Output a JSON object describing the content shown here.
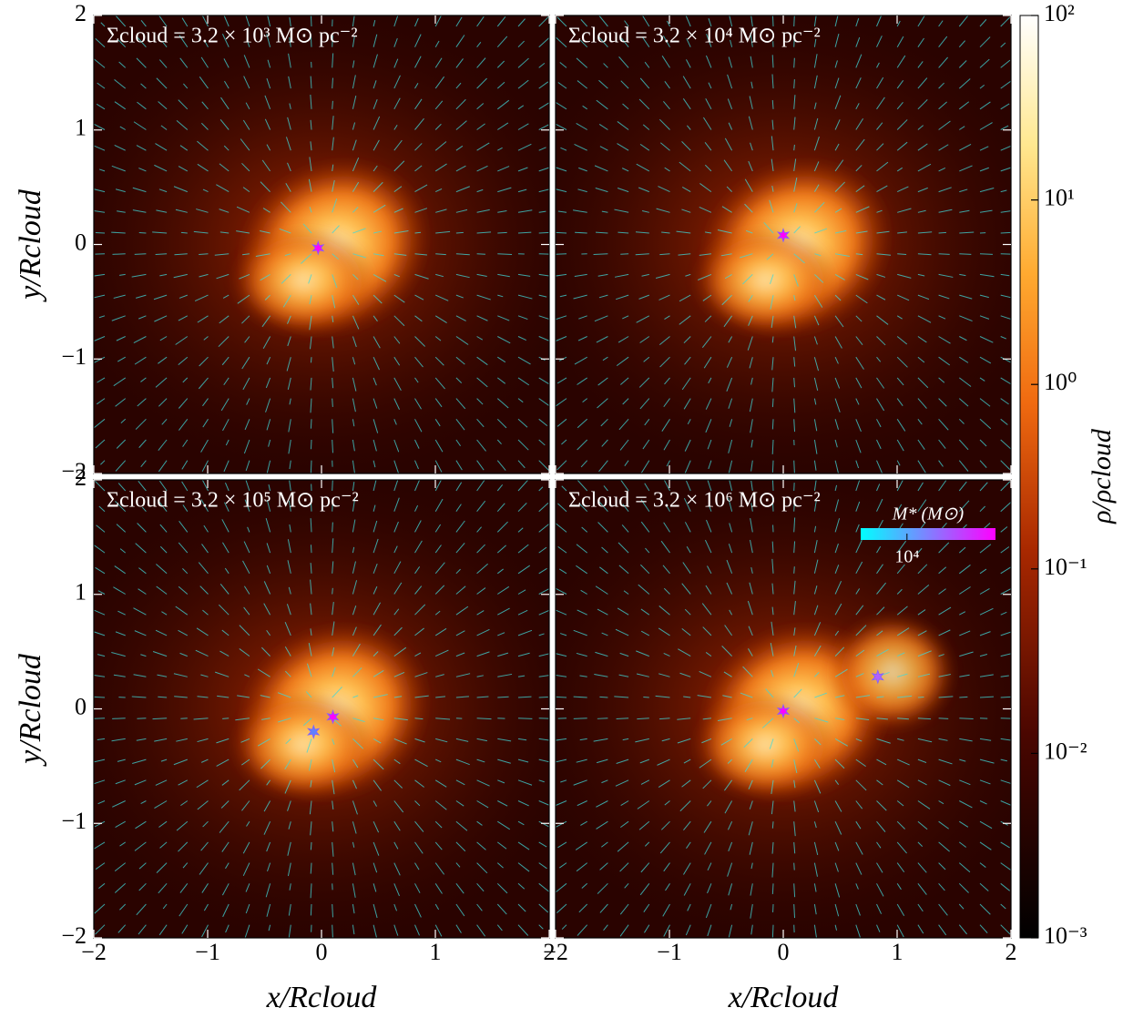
{
  "chart_data": [
    {
      "type": "scatter",
      "title": "Σcloud = 3.2 × 10³ M⊙ pc⁻²",
      "ylabel": "y/Rcloud",
      "xlim": [
        -2,
        2
      ],
      "ylim": [
        -2,
        2
      ],
      "xticks": [
        {
          "value": -2,
          "label": "−2"
        },
        {
          "value": -1,
          "label": "−1"
        },
        0,
        1,
        2
      ],
      "yticks": [
        {
          "value": -2,
          "label": "−2"
        },
        {
          "value": -1,
          "label": "−1"
        },
        0,
        1,
        2
      ],
      "show_xticklabels": false,
      "show_yticklabels": true,
      "x": [
        -0.03
      ],
      "values": [
        -0.03
      ],
      "colors": [
        "#ff00ff"
      ]
    },
    {
      "type": "scatter",
      "title": "Σcloud = 3.2 × 10⁴ M⊙ pc⁻²",
      "xlim": [
        -2,
        2
      ],
      "ylim": [
        -2,
        2
      ],
      "xticks": [
        {
          "value": -2,
          "label": "−2"
        },
        {
          "value": -1,
          "label": "−1"
        },
        0,
        1,
        2
      ],
      "yticks": [
        {
          "value": -2,
          "label": "−2"
        },
        {
          "value": -1,
          "label": "−1"
        },
        0,
        1,
        2
      ],
      "show_xticklabels": false,
      "show_yticklabels": false,
      "x": [
        0.0
      ],
      "values": [
        0.08
      ],
      "colors": [
        "#ff00ff"
      ]
    },
    {
      "type": "scatter",
      "title": "Σcloud = 3.2 × 10⁵ M⊙ pc⁻²",
      "xlabel": "x/Rcloud",
      "ylabel": "y/Rcloud",
      "xlim": [
        -2,
        2
      ],
      "ylim": [
        -2,
        2
      ],
      "xticks": [
        {
          "value": -2,
          "label": "−2"
        },
        {
          "value": -1,
          "label": "−1"
        },
        0,
        1,
        2
      ],
      "yticks": [
        {
          "value": -2,
          "label": "−2"
        },
        {
          "value": -1,
          "label": "−1"
        },
        0,
        1,
        2
      ],
      "show_xticklabels": true,
      "show_yticklabels": true,
      "x": [
        0.1,
        -0.07
      ],
      "values": [
        -0.07,
        -0.2
      ],
      "colors": [
        "#ff00ff",
        "#6080ff"
      ]
    },
    {
      "type": "scatter",
      "title": "Σcloud = 3.2 × 10⁶ M⊙ pc⁻²",
      "xlabel": "x/Rcloud",
      "xlim": [
        -2,
        2
      ],
      "ylim": [
        -2,
        2
      ],
      "xticks": [
        {
          "value": -2,
          "label": "−2"
        },
        {
          "value": -1,
          "label": "−1"
        },
        0,
        1,
        2
      ],
      "yticks": [
        {
          "value": -2,
          "label": "−2"
        },
        {
          "value": -1,
          "label": "−1"
        },
        0,
        1,
        2
      ],
      "show_xticklabels": true,
      "show_yticklabels": false,
      "x": [
        0.0,
        0.83
      ],
      "values": [
        -0.02,
        0.28
      ],
      "colors": [
        "#ff00ff",
        "#b060ff"
      ],
      "mass_colorbar": {
        "label": "M* (M⊙)",
        "lim": [
          3000,
          100000
        ],
        "log": true,
        "ticks": [
          {
            "value": 10000,
            "label": "10⁴"
          }
        ]
      }
    }
  ],
  "colorbar": {
    "label": "ρ/ρcloud",
    "lim": [
      0.001,
      100
    ],
    "log": true,
    "ticks": [
      {
        "value": 0.001,
        "label": "10⁻³"
      },
      {
        "value": 0.01,
        "label": "10⁻²"
      },
      {
        "value": 0.1,
        "label": "10⁻¹"
      },
      {
        "value": 1,
        "label": "10⁰"
      },
      {
        "value": 10,
        "label": "10¹"
      },
      {
        "value": 100,
        "label": "10²"
      }
    ]
  }
}
